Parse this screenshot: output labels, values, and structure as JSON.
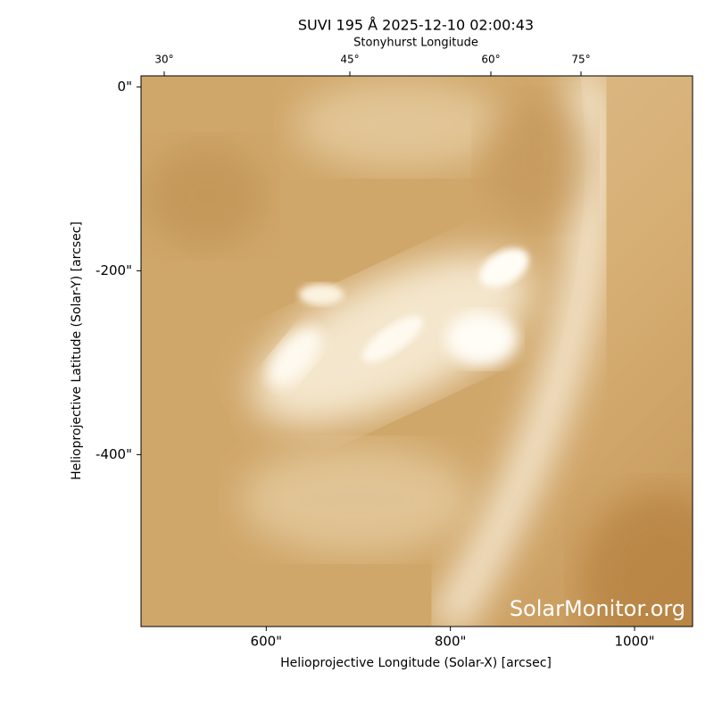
{
  "chart_data": {
    "type": "image",
    "title": "SUVI 195 Å 2025-12-10 02:00:43",
    "xlabel": "Helioprojective Longitude (Solar-X) [arcsec]",
    "ylabel": "Helioprojective Latitude (Solar-Y) [arcsec]",
    "top_axis_label": "Stonyhurst Longitude",
    "xlim": [
      464,
      1063
    ],
    "ylim": [
      -587,
      12
    ],
    "xticks": [
      {
        "value": 600,
        "label": "600\""
      },
      {
        "value": 800,
        "label": "800\""
      },
      {
        "value": 1000,
        "label": "1000\""
      }
    ],
    "yticks": [
      {
        "value": 0,
        "label": "0\""
      },
      {
        "value": -200,
        "label": "-200\""
      },
      {
        "value": -400,
        "label": "-400\""
      }
    ],
    "top_ticks": [
      {
        "value": 30,
        "label": "30°"
      },
      {
        "value": 45,
        "label": "45°"
      },
      {
        "value": 60,
        "label": "60°"
      },
      {
        "value": 75,
        "label": "75°"
      }
    ],
    "watermark": "SolarMonitor.org"
  }
}
